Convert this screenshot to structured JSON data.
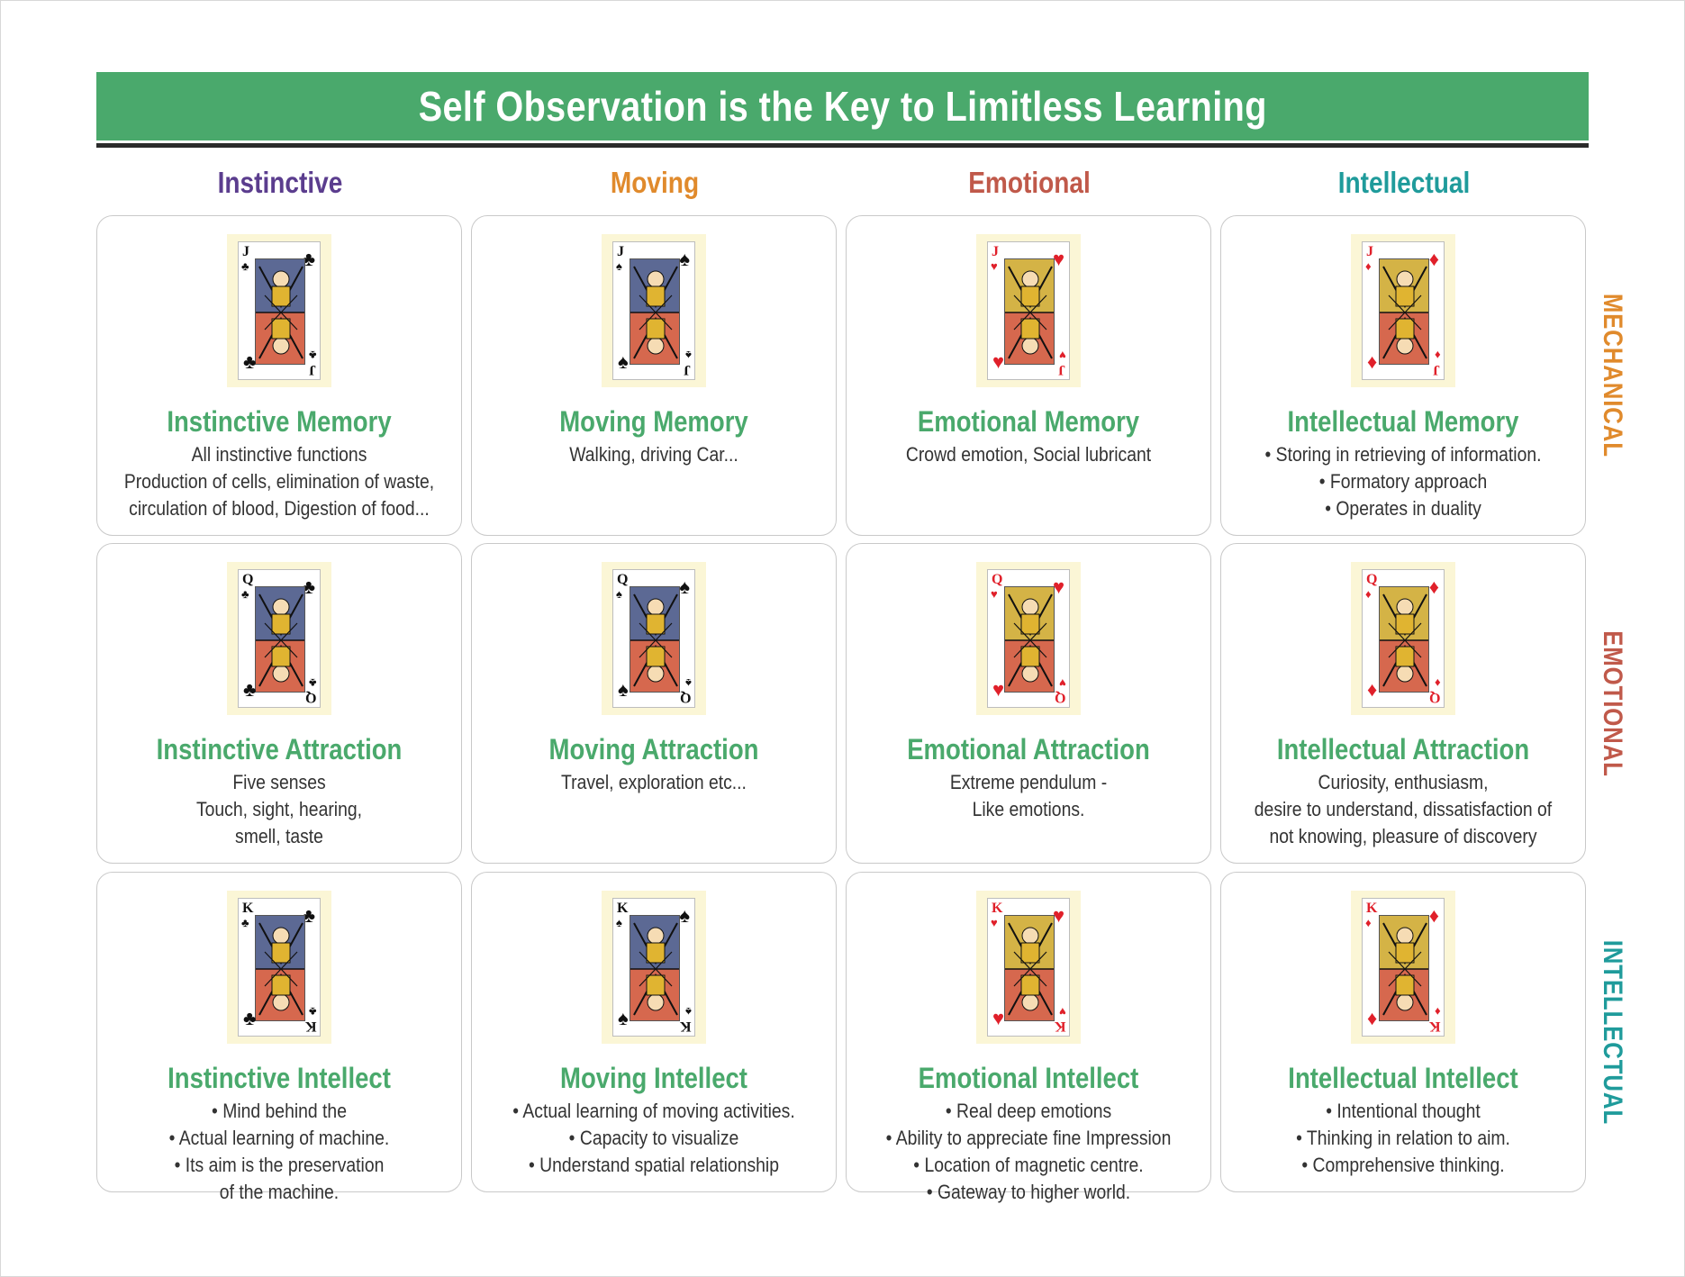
{
  "title": "Self Observation is the Key to Limitless Learning",
  "colors": {
    "title_bg": "#4aa96c",
    "card_title": "#4aa96c",
    "instinctive": "#5b3d8e",
    "moving": "#e08a2c",
    "emotional": "#c0594a",
    "intellectual": "#1f9b9b",
    "club_spade": "#111111",
    "heart_diamond": "#e0202a"
  },
  "columns": [
    {
      "label": "Instinctive",
      "color": "#5b3d8e"
    },
    {
      "label": "Moving",
      "color": "#e08a2c"
    },
    {
      "label": "Emotional",
      "color": "#c0594a"
    },
    {
      "label": "Intellectual",
      "color": "#1f9b9b"
    }
  ],
  "rows": [
    {
      "label": "MECHANICAL",
      "color": "#e08a2c"
    },
    {
      "label": "EMOTIONAL",
      "color": "#c0594a"
    },
    {
      "label": "INTELLECTUAL",
      "color": "#1f9b9b"
    }
  ],
  "cards": [
    [
      {
        "title": "Instinctive Memory",
        "rank": "J",
        "suit": "♣",
        "suit_color": "#111111",
        "icon": "jack-of-clubs-icon",
        "lines": [
          "All instinctive functions",
          "Production of cells, elimination of waste,",
          "circulation of blood, Digestion of food..."
        ]
      },
      {
        "title": "Moving Memory",
        "rank": "J",
        "suit": "♠",
        "suit_color": "#111111",
        "icon": "jack-of-spades-icon",
        "lines": [
          "Walking, driving Car..."
        ]
      },
      {
        "title": "Emotional Memory",
        "rank": "J",
        "suit": "♥",
        "suit_color": "#e0202a",
        "icon": "jack-of-hearts-icon",
        "lines": [
          "Crowd emotion, Social lubricant"
        ]
      },
      {
        "title": "Intellectual Memory",
        "rank": "J",
        "suit": "♦",
        "suit_color": "#e0202a",
        "icon": "jack-of-diamonds-icon",
        "lines": [
          "•  Storing in retrieving of information.",
          "•  Formatory approach",
          "•  Operates in duality"
        ]
      }
    ],
    [
      {
        "title": "Instinctive Attraction",
        "rank": "Q",
        "suit": "♣",
        "suit_color": "#111111",
        "icon": "queen-of-clubs-icon",
        "lines": [
          "Five senses",
          "Touch, sight, hearing,",
          "smell, taste"
        ]
      },
      {
        "title": "Moving Attraction",
        "rank": "Q",
        "suit": "♠",
        "suit_color": "#111111",
        "icon": "queen-of-spades-icon",
        "lines": [
          "Travel, exploration etc..."
        ]
      },
      {
        "title": "Emotional Attraction",
        "rank": "Q",
        "suit": "♥",
        "suit_color": "#e0202a",
        "icon": "queen-of-hearts-icon",
        "lines": [
          "Extreme pendulum -",
          "Like emotions."
        ]
      },
      {
        "title": "Intellectual Attraction",
        "rank": "Q",
        "suit": "♦",
        "suit_color": "#e0202a",
        "icon": "queen-of-diamonds-icon",
        "lines": [
          "Curiosity, enthusiasm,",
          "desire to understand, dissatisfaction of",
          "not knowing, pleasure of discovery"
        ]
      }
    ],
    [
      {
        "title": "Instinctive Intellect",
        "rank": "K",
        "suit": "♣",
        "suit_color": "#111111",
        "icon": "king-of-clubs-icon",
        "lines": [
          "•  Mind behind the",
          "•  Actual learning of machine.",
          "•  Its aim is the preservation",
          "of the machine."
        ]
      },
      {
        "title": "Moving Intellect",
        "rank": "K",
        "suit": "♠",
        "suit_color": "#111111",
        "icon": "king-of-spades-icon",
        "lines": [
          "•  Actual learning of moving activities.",
          "•  Capacity to visualize",
          "•  Understand spatial relationship"
        ]
      },
      {
        "title": "Emotional Intellect",
        "rank": "K",
        "suit": "♥",
        "suit_color": "#e0202a",
        "icon": "king-of-hearts-icon",
        "lines": [
          "•  Real deep emotions",
          "•  Ability to appreciate fine Impression",
          "•  Location of magnetic centre.",
          "•  Gateway to higher world."
        ]
      },
      {
        "title": "Intellectual Intellect",
        "rank": "K",
        "suit": "♦",
        "suit_color": "#e0202a",
        "icon": "king-of-diamonds-icon",
        "lines": [
          "•  Intentional thought",
          "•  Thinking in relation to aim.",
          "•  Comprehensive thinking."
        ]
      }
    ]
  ]
}
